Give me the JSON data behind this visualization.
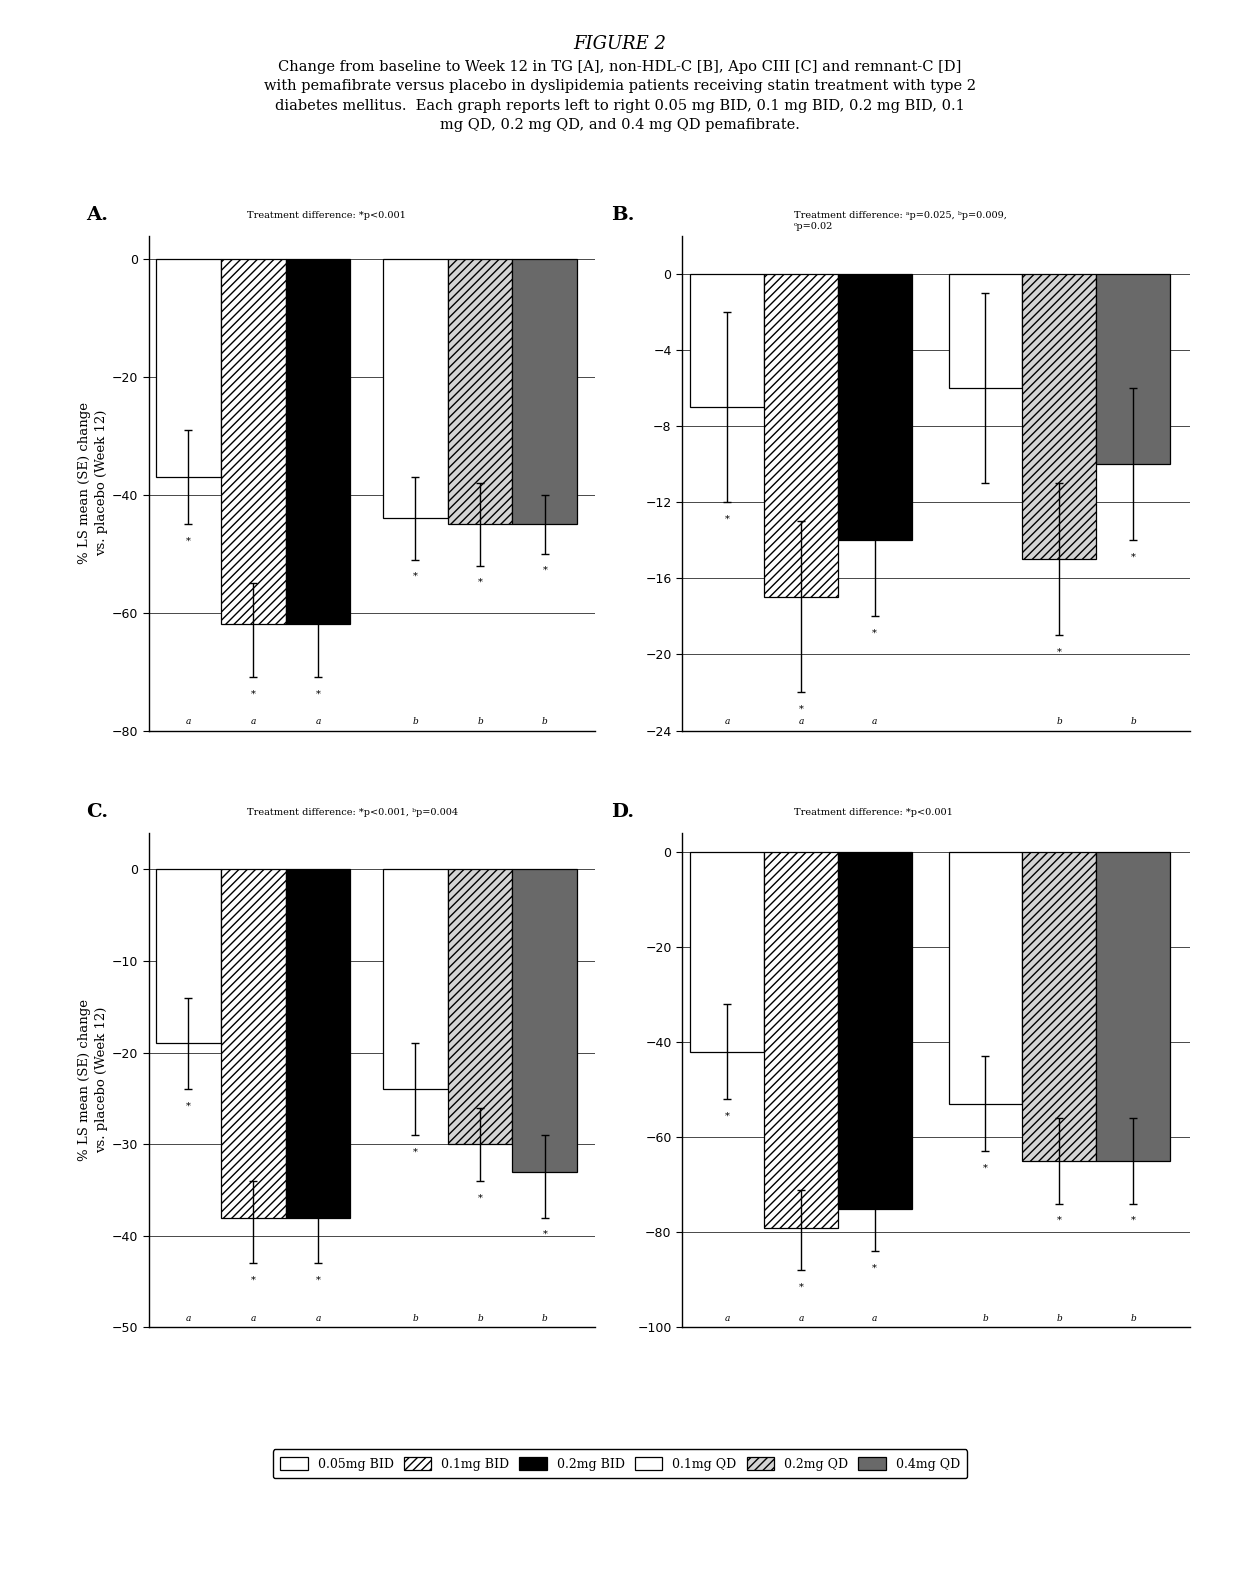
{
  "title": "FIGURE 2",
  "subtitle": "Change from baseline to Week 12 in TG [A], non-HDL-C [B], Apo CIII [C] and remnant-C [D]\nwith pemafibrate versus placebo in dyslipidemia patients receiving statin treatment with type 2\ndiabetes mellitus.  Each graph reports left to right 0.05 mg BID, 0.1 mg BID, 0.2 mg BID, 0.1\nmg QD, 0.2 mg QD, and 0.4 mg QD pemafibrate.",
  "panel_A": {
    "label": "A.",
    "annotation": "Treatment difference: *p<0.001",
    "ylabel": "% LS mean (SE) change\nvs. placebo (Week 12)",
    "ylim": [
      -80,
      4
    ],
    "yticks": [
      0,
      -20,
      -40,
      -60,
      -80
    ],
    "bars": [
      -37,
      -62,
      -62,
      -44,
      -45,
      -45
    ],
    "errors_up": [
      8,
      7,
      6,
      7,
      7,
      5
    ],
    "errors_dn": [
      8,
      9,
      9,
      7,
      7,
      5
    ],
    "asterisk_pos": [
      -60,
      -60,
      -60,
      -60,
      -60,
      -60
    ],
    "bottom_sig": [
      "*",
      "*",
      "*",
      "*",
      "*",
      "*"
    ]
  },
  "panel_B": {
    "label": "B.",
    "annotation": "Treatment difference: ᵃp=0.025, ᵇp=0.009,\nᶜp=0.02",
    "ylabel": "",
    "ylim": [
      -24,
      2
    ],
    "yticks": [
      0,
      -4,
      -8,
      -12,
      -16,
      -20,
      -24
    ],
    "bars": [
      -7,
      -17,
      -14,
      -6,
      -15,
      -10
    ],
    "errors_up": [
      5,
      4,
      4,
      5,
      4,
      4
    ],
    "errors_dn": [
      5,
      5,
      4,
      5,
      4,
      4
    ],
    "asterisk_pos": [
      -20,
      -20,
      -20,
      -20,
      -20,
      -20
    ],
    "bottom_sig": [
      "*",
      "*",
      "*",
      "",
      "*",
      "*"
    ]
  },
  "panel_C": {
    "label": "C.",
    "annotation": "Treatment difference: *p<0.001, ᵇp=0.004",
    "ylabel": "% LS mean (SE) change\nvs. placebo (Week 12)",
    "ylim": [
      -50,
      4
    ],
    "yticks": [
      0,
      -10,
      -20,
      -30,
      -40,
      -50
    ],
    "bars": [
      -19,
      -38,
      -38,
      -24,
      -30,
      -33
    ],
    "errors_up": [
      5,
      4,
      4,
      5,
      4,
      4
    ],
    "errors_dn": [
      5,
      5,
      5,
      5,
      4,
      5
    ],
    "asterisk_pos": [
      -40,
      -40,
      -40,
      -40,
      -40,
      -40
    ],
    "bottom_sig": [
      "*",
      "*",
      "*",
      "*",
      "*",
      "*"
    ]
  },
  "panel_D": {
    "label": "D.",
    "annotation": "Treatment difference: *p<0.001",
    "ylabel": "",
    "ylim": [
      -100,
      4
    ],
    "yticks": [
      0,
      -20,
      -40,
      -60,
      -80,
      -100
    ],
    "bars": [
      -42,
      -79,
      -75,
      -53,
      -65,
      -65
    ],
    "errors_up": [
      10,
      8,
      8,
      10,
      9,
      9
    ],
    "errors_dn": [
      10,
      9,
      9,
      10,
      9,
      9
    ],
    "asterisk_pos": [
      -80,
      -80,
      -80,
      -80,
      -80,
      -80
    ],
    "bottom_sig": [
      "*",
      "*",
      "*",
      "*",
      "*",
      "*"
    ]
  },
  "bar_hatches": [
    "",
    "////",
    "",
    "",
    "////",
    ""
  ],
  "bar_facecolors": [
    "white",
    "white",
    "black",
    "white",
    "lightgray",
    "dimgray"
  ],
  "bar_edgecolors": [
    "black",
    "black",
    "black",
    "black",
    "black",
    "black"
  ],
  "legend_labels": [
    "0.05mg BID",
    "0.1mg BID",
    "0.2mg BID",
    "0.1mg QD",
    "0.2mg QD",
    "0.4mg QD"
  ],
  "legend_hatches": [
    "",
    "////",
    "",
    "",
    "////",
    ""
  ],
  "legend_facecolors": [
    "white",
    "white",
    "black",
    "white",
    "lightgray",
    "dimgray"
  ],
  "legend_edgecolors": [
    "black",
    "black",
    "black",
    "black",
    "black",
    "black"
  ],
  "bg_color": "white",
  "font_color": "black"
}
